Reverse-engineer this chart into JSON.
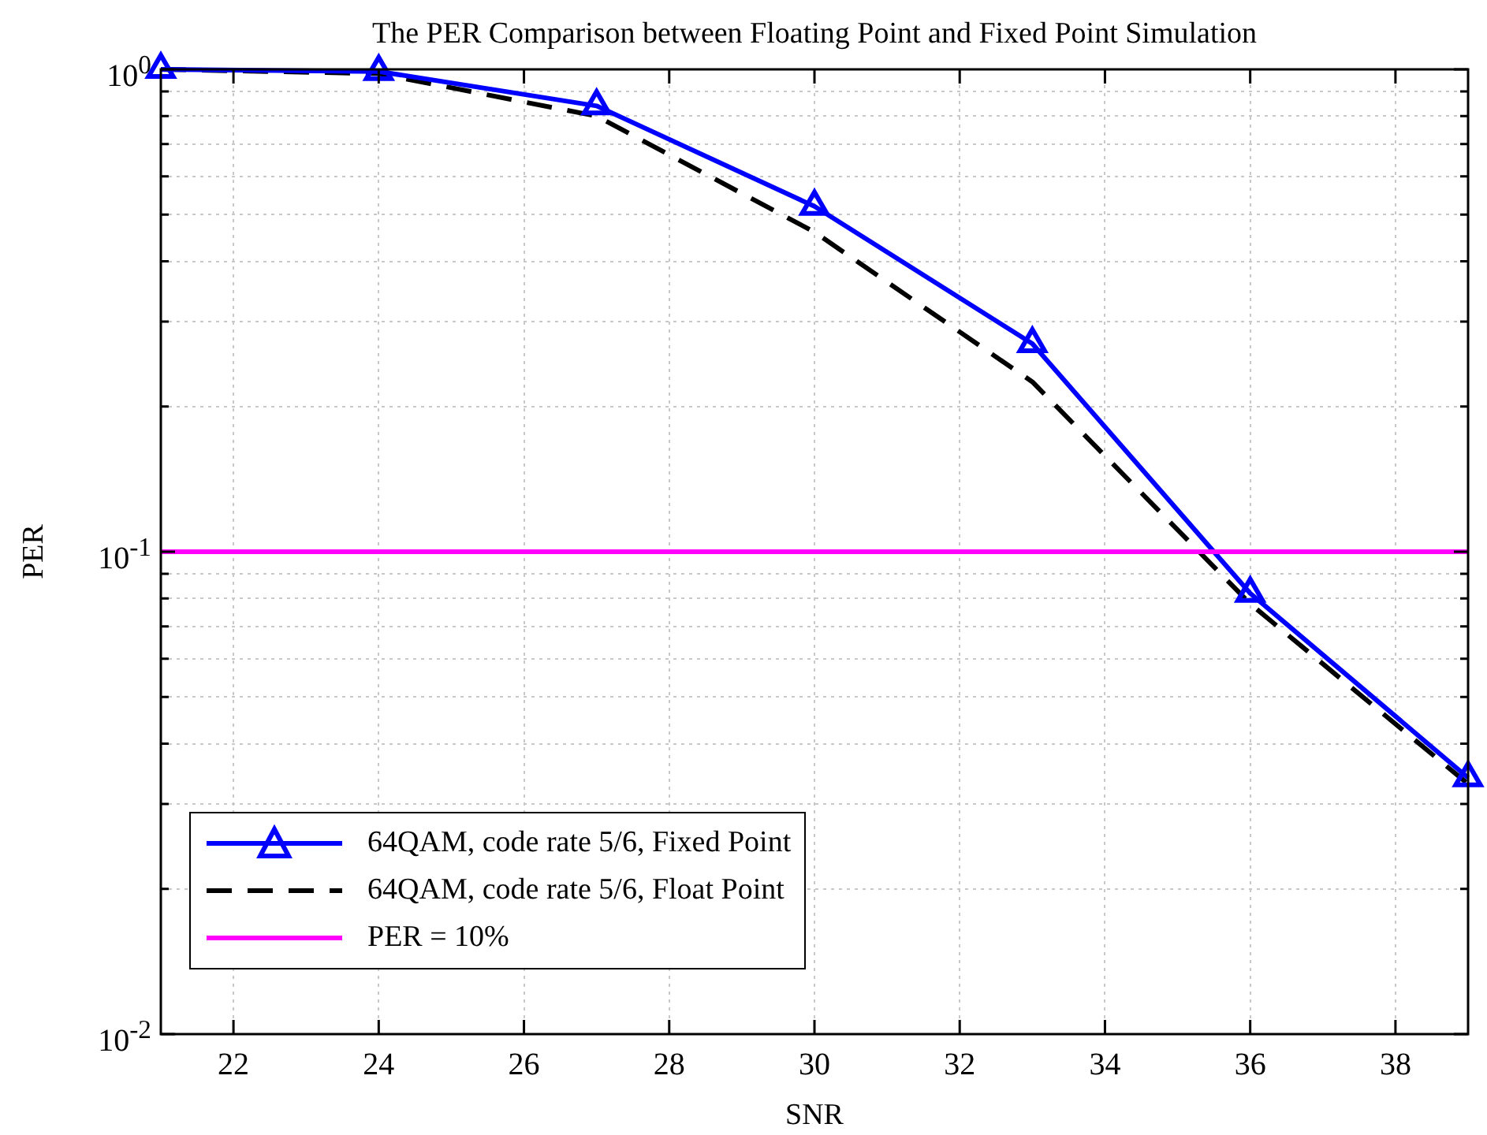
{
  "chart_data": {
    "type": "line",
    "title": "The PER Comparison between Floating Point and Fixed Point Simulation",
    "xlabel": "SNR",
    "ylabel": "PER",
    "x": [
      21,
      24,
      27,
      30,
      33,
      36,
      39
    ],
    "series": [
      {
        "name": "64QAM, code rate 5/6, Fixed Point",
        "color": "#0000ff",
        "marker": "triangle",
        "line_style": "solid",
        "values": [
          1.0,
          0.99,
          0.84,
          0.52,
          0.27,
          0.082,
          0.034
        ]
      },
      {
        "name": "64QAM, code rate 5/6, Float Point",
        "color": "#000000",
        "marker": "none",
        "line_style": "dashed",
        "values": [
          1.0,
          0.98,
          0.8,
          0.46,
          0.225,
          0.078,
          0.033
        ]
      }
    ],
    "ref_lines": [
      {
        "axis": "y",
        "value": 0.1,
        "label": "PER = 10%",
        "color": "#ff00ff"
      }
    ],
    "log": "y",
    "xlim": [
      21,
      39
    ],
    "ylim": [
      0.01,
      1
    ],
    "xticks": [
      22,
      24,
      26,
      28,
      30,
      32,
      34,
      36,
      38
    ],
    "yticks": [
      {
        "value": 0.01,
        "label": "10$^{-2}$"
      },
      {
        "value": 0.02,
        "label": null
      },
      {
        "value": 0.03,
        "label": null
      },
      {
        "value": 0.04,
        "label": null
      },
      {
        "value": 0.05,
        "label": null
      },
      {
        "value": 0.06,
        "label": null
      },
      {
        "value": 0.07,
        "label": null
      },
      {
        "value": 0.08,
        "label": null
      },
      {
        "value": 0.09,
        "label": null
      },
      {
        "value": 0.1,
        "label": "10$^{-1}$"
      },
      {
        "value": 0.2,
        "label": null
      },
      {
        "value": 0.3,
        "label": null
      },
      {
        "value": 0.4,
        "label": null
      },
      {
        "value": 0.5,
        "label": null
      },
      {
        "value": 0.6,
        "label": null
      },
      {
        "value": 0.7,
        "label": null
      },
      {
        "value": 0.8,
        "label": null
      },
      {
        "value": 0.9,
        "label": null
      },
      {
        "value": 1,
        "label": "10$^{0}$"
      }
    ],
    "grid": true,
    "legend": "bottom left"
  }
}
